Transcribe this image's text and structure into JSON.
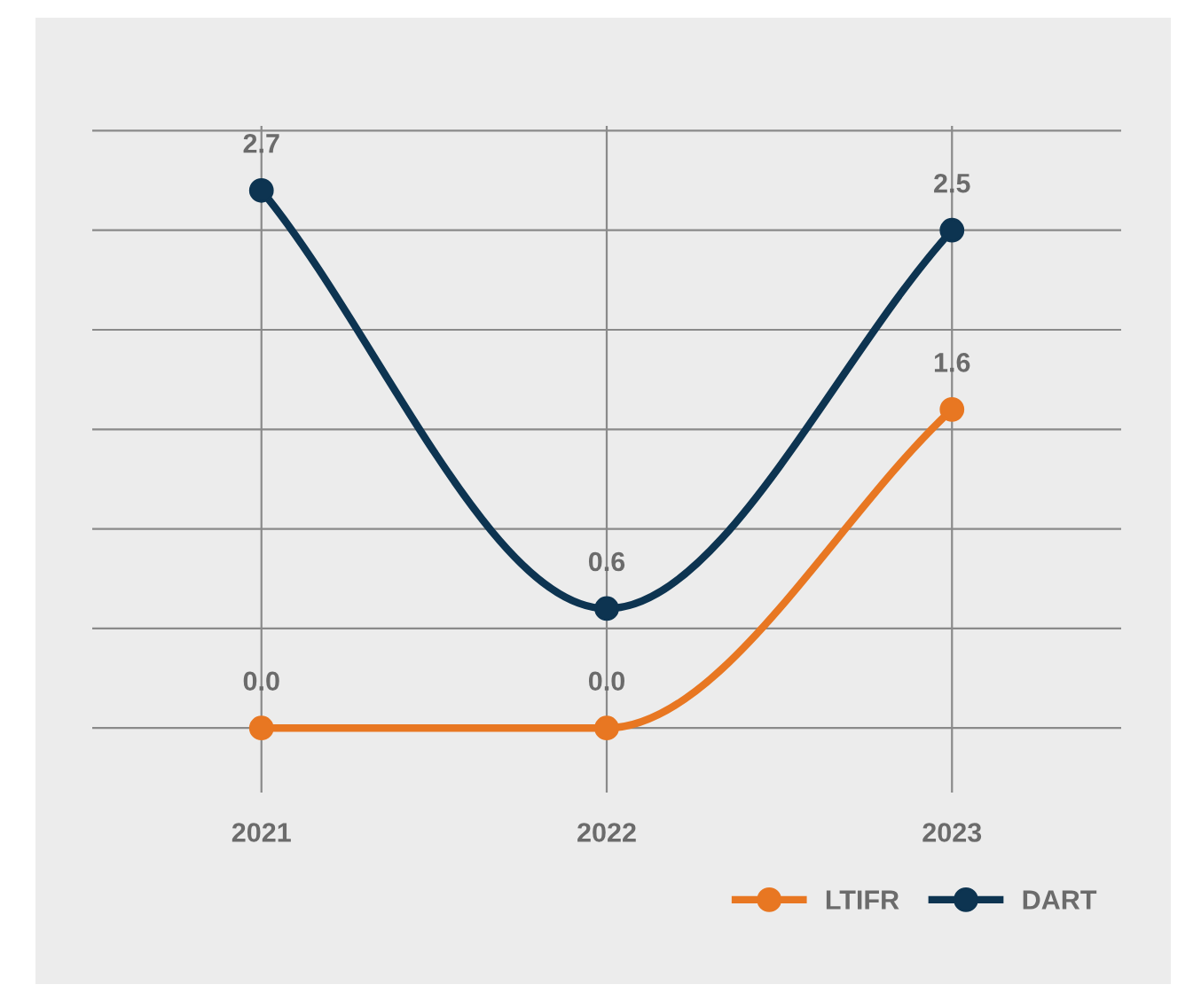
{
  "chart_data": {
    "type": "line",
    "categories": [
      "2021",
      "2022",
      "2023"
    ],
    "series": [
      {
        "name": "LTIFR",
        "color": "#e87722",
        "values": [
          0.0,
          0.0,
          1.6
        ],
        "value_labels": [
          "0.0",
          "0.0",
          "1.6"
        ]
      },
      {
        "name": "DART",
        "color": "#0d3451",
        "values": [
          2.7,
          0.6,
          2.5
        ],
        "value_labels": [
          "2.7",
          "0.6",
          "2.5"
        ]
      }
    ],
    "tick_labels": "x",
    "grid": true,
    "legend": "bottom right",
    "marker": "circle",
    "line_style": "solid"
  }
}
